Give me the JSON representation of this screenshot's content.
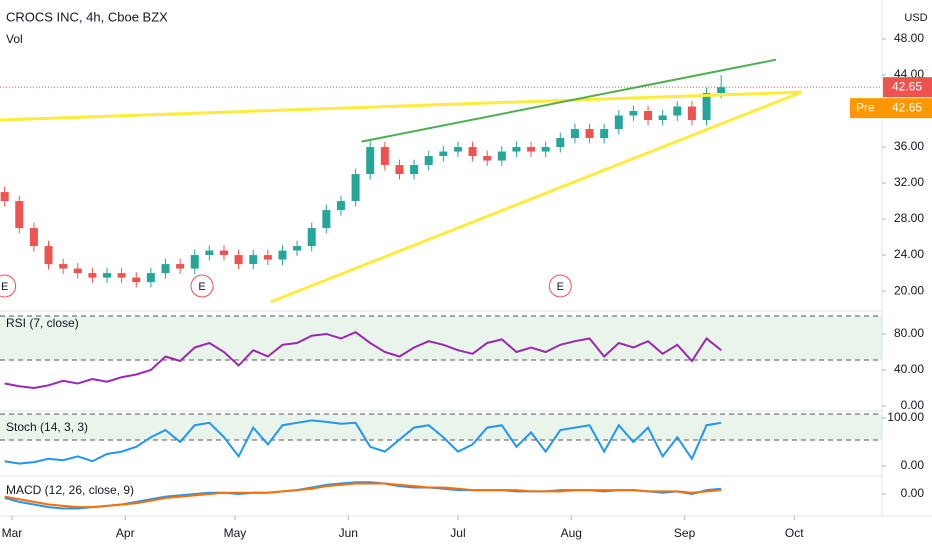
{
  "chart_data": [
    {
      "type": "candlestick",
      "title": "CROCS INC, 4h, Cboe BZX",
      "subtitle": "Vol",
      "currency": "USD",
      "x": [
        -2,
        2,
        6,
        10,
        14,
        18,
        22,
        26,
        30,
        34,
        38,
        42,
        46,
        50,
        54,
        58,
        62,
        66,
        70,
        74,
        78,
        82,
        86,
        90,
        94,
        98,
        102,
        106,
        110,
        114,
        118,
        122,
        126,
        130,
        134,
        138,
        142,
        146,
        150,
        154,
        158,
        162,
        166,
        170,
        174,
        178,
        182,
        186,
        190,
        194
      ],
      "open": [
        31,
        30,
        27,
        25,
        23,
        22.5,
        22,
        21.5,
        22,
        21.5,
        21,
        22,
        23,
        22.5,
        24,
        24.5,
        24,
        23,
        24,
        23.5,
        24.5,
        25,
        27,
        29,
        30,
        33,
        36,
        34,
        33,
        34,
        35,
        35.5,
        36,
        35,
        34.5,
        35.5,
        36,
        35.5,
        36,
        37,
        38,
        37,
        38,
        39.5,
        40,
        39,
        39.5,
        40.5,
        39,
        42
      ],
      "high": [
        31.6,
        30.6,
        27.6,
        25.6,
        23.6,
        23.1,
        22.6,
        22.6,
        22.6,
        22.1,
        22.6,
        23.6,
        23.6,
        24.6,
        25.1,
        25.1,
        24.6,
        24.6,
        24.6,
        25.1,
        25.6,
        27.6,
        29.6,
        30.6,
        33.6,
        36.8,
        36.6,
        34.6,
        34.6,
        35.6,
        36.1,
        36.6,
        36.6,
        35.6,
        36.1,
        36.6,
        36.6,
        36.6,
        37.6,
        38.6,
        38.6,
        38.6,
        40.1,
        40.6,
        40.6,
        40.1,
        41.1,
        41.1,
        42.6,
        44
      ],
      "low": [
        29.4,
        26.4,
        24.4,
        22.4,
        21.9,
        21.4,
        20.9,
        20.9,
        20.9,
        20.4,
        20.4,
        21.4,
        21.9,
        21.9,
        23.4,
        23.4,
        22.4,
        22.4,
        22.9,
        22.9,
        23.9,
        24.4,
        26.4,
        28.4,
        29.4,
        32.4,
        33.4,
        32.4,
        32.4,
        33.4,
        34.4,
        34.9,
        34.4,
        33.9,
        33.9,
        34.9,
        34.9,
        34.9,
        35.4,
        36.4,
        36.4,
        36.4,
        37.4,
        38.9,
        38.4,
        38.4,
        38.9,
        38.4,
        38.4,
        41.4
      ],
      "close": [
        30,
        27,
        25,
        23,
        22.5,
        22,
        21.5,
        22,
        21.5,
        21,
        22,
        23,
        22.5,
        24,
        24.5,
        24,
        23,
        24,
        23.5,
        24.5,
        25,
        27,
        29,
        30,
        33,
        36,
        34,
        33,
        34,
        35,
        35.5,
        36,
        35,
        34.5,
        35.5,
        36,
        35.5,
        36,
        37,
        38,
        37,
        38,
        39.5,
        40,
        39,
        39.5,
        40.5,
        39,
        42,
        42.65
      ],
      "up_color": "#26a69a",
      "down_color": "#ef5350",
      "xlim": [
        -3.27,
        238
      ],
      "xticks": [
        {
          "value": 0,
          "label": "Mar"
        },
        {
          "value": 31,
          "label": "Apr"
        },
        {
          "value": 61,
          "label": "May"
        },
        {
          "value": 92,
          "label": "Jun"
        },
        {
          "value": 122,
          "label": "Jul"
        },
        {
          "value": 153,
          "label": "Aug"
        },
        {
          "value": 184,
          "label": "Sep"
        },
        {
          "value": 214,
          "label": "Oct"
        }
      ],
      "ylim": [
        17.9,
        52.33
      ],
      "yticks": [
        {
          "value": 20,
          "label": "20.00"
        },
        {
          "value": 24,
          "label": "24.00"
        },
        {
          "value": 28,
          "label": "28.00"
        },
        {
          "value": 32,
          "label": "32.00"
        },
        {
          "value": 36,
          "label": "36.00"
        },
        {
          "value": 44,
          "label": "44.00"
        },
        {
          "value": 48,
          "label": "48.00"
        }
      ],
      "lines": [
        {
          "color": "#ffeb3b",
          "x": [
            -3.27,
            216
          ],
          "y": [
            39,
            42.1
          ]
        },
        {
          "color": "#ffeb3b",
          "x": [
            70.8,
            216
          ],
          "y": [
            18.8,
            42.1
          ]
        },
        {
          "color": "#4caf50",
          "x": [
            95.6,
            209
          ],
          "y": [
            36.6,
            45.7
          ]
        }
      ],
      "events": [
        {
          "label": "E",
          "x": -2
        },
        {
          "label": "E",
          "x": 52
        },
        {
          "label": "E",
          "x": 150
        }
      ],
      "last_price": {
        "value": 42.65,
        "label": "42.65"
      },
      "pre_price": {
        "name": "Pre",
        "value": 42.65,
        "label": "42.65"
      }
    },
    {
      "type": "line",
      "title": "RSI (7, close)",
      "color": "#9c27b0",
      "x": [
        -2,
        2,
        6,
        10,
        14,
        18,
        22,
        26,
        30,
        34,
        38,
        42,
        46,
        50,
        54,
        58,
        62,
        66,
        70,
        74,
        78,
        82,
        86,
        90,
        94,
        98,
        102,
        106,
        110,
        114,
        118,
        122,
        126,
        130,
        134,
        138,
        142,
        146,
        150,
        154,
        158,
        162,
        166,
        170,
        174,
        178,
        182,
        186,
        190,
        194
      ],
      "values": [
        25,
        22,
        20,
        23,
        28,
        25,
        30,
        27,
        32,
        35,
        40,
        55,
        50,
        65,
        70,
        60,
        45,
        62,
        55,
        68,
        70,
        78,
        80,
        75,
        82,
        70,
        60,
        55,
        65,
        72,
        68,
        62,
        58,
        70,
        74,
        60,
        65,
        60,
        68,
        72,
        75,
        55,
        70,
        65,
        72,
        58,
        68,
        50,
        75,
        62
      ],
      "ylim": [
        -4.4,
        104.4
      ],
      "yticks": [
        {
          "value": 80,
          "label": "80.00"
        },
        {
          "value": 40,
          "label": "40.00"
        },
        {
          "value": 0,
          "label": "0.00"
        }
      ]
    },
    {
      "type": "line",
      "title": "Stoch (14, 3, 3)",
      "color": "#2196f3",
      "x": [
        -2,
        2,
        6,
        10,
        14,
        18,
        22,
        26,
        30,
        34,
        38,
        42,
        46,
        50,
        54,
        58,
        62,
        66,
        70,
        74,
        78,
        82,
        86,
        90,
        94,
        98,
        102,
        106,
        110,
        114,
        118,
        122,
        126,
        130,
        134,
        138,
        142,
        146,
        150,
        154,
        158,
        162,
        166,
        170,
        174,
        178,
        182,
        186,
        190,
        194
      ],
      "values": [
        10,
        5,
        8,
        15,
        12,
        20,
        10,
        25,
        30,
        40,
        60,
        75,
        50,
        85,
        90,
        60,
        20,
        80,
        45,
        85,
        90,
        95,
        92,
        88,
        90,
        40,
        30,
        55,
        80,
        85,
        60,
        30,
        45,
        80,
        85,
        40,
        70,
        30,
        75,
        80,
        85,
        30,
        85,
        50,
        80,
        20,
        60,
        15,
        85,
        90
      ],
      "ylim": [
        -20.8,
        112.5
      ],
      "yticks": [
        {
          "value": 100,
          "label": "100.00"
        },
        {
          "value": 0,
          "label": "0.00"
        }
      ]
    },
    {
      "type": "line",
      "title": "MACD (12, 26, close, 9)",
      "x": [
        -2,
        2,
        6,
        10,
        14,
        18,
        22,
        26,
        30,
        34,
        38,
        42,
        46,
        50,
        54,
        58,
        62,
        66,
        70,
        74,
        78,
        82,
        86,
        90,
        94,
        98,
        102,
        106,
        110,
        114,
        118,
        122,
        126,
        130,
        134,
        138,
        142,
        146,
        150,
        154,
        158,
        162,
        166,
        170,
        174,
        178,
        182,
        186,
        190,
        194
      ],
      "series": [
        {
          "color": "#2196f3",
          "values": [
            -0.3,
            -0.6,
            -0.8,
            -1.0,
            -1.1,
            -1.1,
            -1.0,
            -0.9,
            -0.8,
            -0.6,
            -0.4,
            -0.2,
            -0.1,
            0.0,
            0.1,
            0.1,
            0.0,
            0.1,
            0.1,
            0.2,
            0.3,
            0.5,
            0.7,
            0.8,
            0.9,
            0.9,
            0.8,
            0.6,
            0.5,
            0.5,
            0.4,
            0.3,
            0.3,
            0.3,
            0.3,
            0.2,
            0.2,
            0.2,
            0.3,
            0.3,
            0.3,
            0.2,
            0.3,
            0.3,
            0.2,
            0.1,
            0.2,
            0.0,
            0.3,
            0.4
          ]
        },
        {
          "color": "#ff6d00",
          "values": [
            -0.2,
            -0.4,
            -0.6,
            -0.8,
            -0.9,
            -1.0,
            -1.0,
            -0.9,
            -0.8,
            -0.7,
            -0.5,
            -0.3,
            -0.2,
            -0.1,
            0.0,
            0.1,
            0.1,
            0.1,
            0.1,
            0.2,
            0.3,
            0.4,
            0.6,
            0.7,
            0.8,
            0.8,
            0.8,
            0.7,
            0.6,
            0.5,
            0.5,
            0.4,
            0.3,
            0.3,
            0.3,
            0.3,
            0.2,
            0.2,
            0.2,
            0.3,
            0.3,
            0.3,
            0.3,
            0.3,
            0.2,
            0.2,
            0.2,
            0.1,
            0.2,
            0.3
          ]
        }
      ],
      "ylim": [
        -1.6,
        1.3
      ],
      "yticks": [
        {
          "value": 0,
          "label": "0.00"
        }
      ]
    }
  ]
}
